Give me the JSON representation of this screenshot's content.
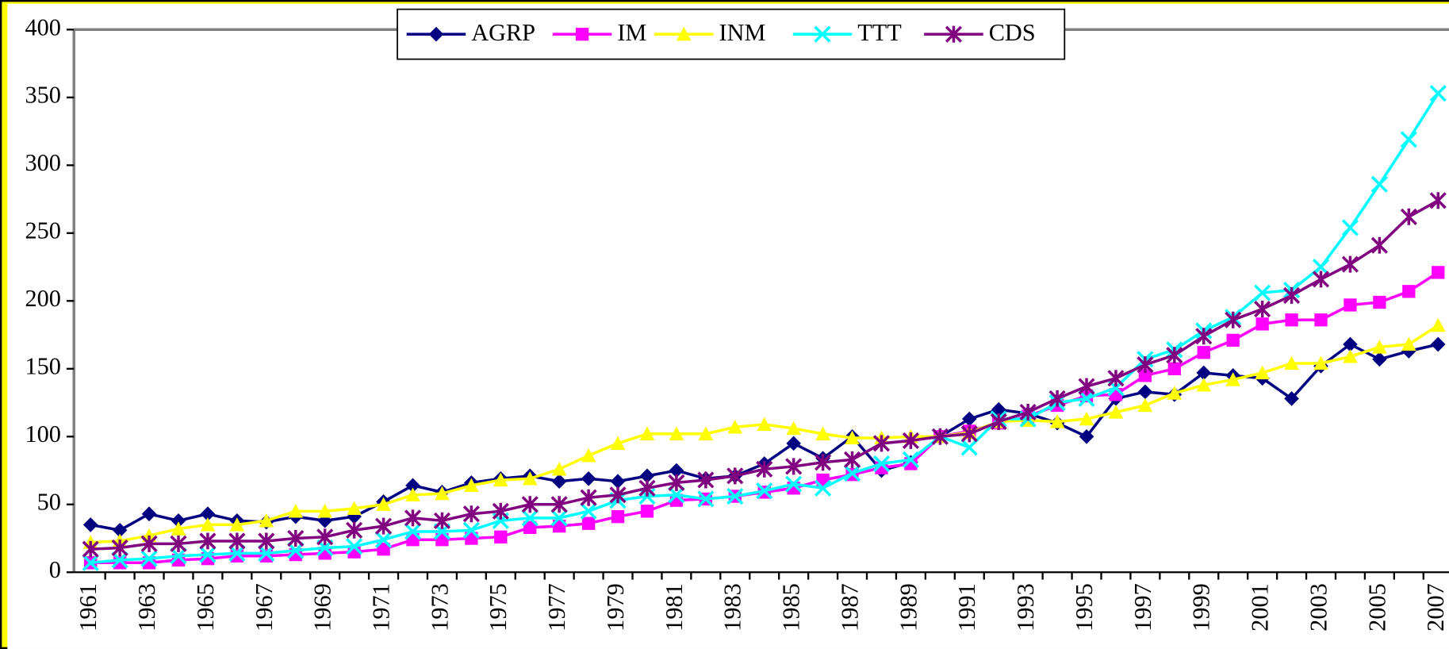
{
  "chart_data": {
    "type": "line",
    "categories": [
      "1961",
      null,
      "1963",
      null,
      "1965",
      null,
      "1967",
      null,
      "1969",
      null,
      "1971",
      null,
      "1973",
      null,
      "1975",
      null,
      "1977",
      null,
      "1979",
      null,
      "1981",
      null,
      "1983",
      null,
      "1985",
      null,
      "1987",
      null,
      "1989",
      null,
      "1991",
      null,
      "1993",
      null,
      "1995",
      null,
      "1997",
      null,
      "1999",
      null,
      "2001",
      null,
      "2003",
      null,
      "2005",
      null,
      "2007"
    ],
    "series": [
      {
        "name": "AGRP",
        "color": "#000080",
        "marker": "diamond",
        "values": [
          35,
          31,
          43,
          38,
          43,
          38,
          37,
          41,
          38,
          41,
          52,
          64,
          59,
          66,
          69,
          71,
          67,
          69,
          67,
          71,
          75,
          69,
          71,
          80,
          95,
          84,
          100,
          75,
          81,
          100,
          113,
          120,
          117,
          110,
          100,
          128,
          133,
          131,
          147,
          145,
          143,
          128,
          152,
          168,
          157,
          163,
          168
        ]
      },
      {
        "name": "IM",
        "color": "#ff00ff",
        "marker": "square",
        "values": [
          7,
          7,
          7,
          9,
          10,
          12,
          12,
          13,
          14,
          15,
          17,
          24,
          24,
          25,
          26,
          33,
          34,
          36,
          41,
          45,
          53,
          54,
          56,
          59,
          62,
          68,
          72,
          77,
          80,
          100,
          104,
          110,
          115,
          123,
          130,
          131,
          145,
          150,
          162,
          171,
          183,
          186,
          186,
          197,
          199,
          207,
          221
        ]
      },
      {
        "name": "INM",
        "color": "#ffff00",
        "marker": "triangle",
        "values": [
          22,
          23,
          27,
          32,
          35,
          35,
          38,
          45,
          45,
          47,
          50,
          57,
          58,
          64,
          68,
          69,
          76,
          86,
          95,
          102,
          102,
          102,
          107,
          109,
          106,
          102,
          99,
          99,
          100,
          100,
          103,
          111,
          112,
          111,
          113,
          118,
          123,
          132,
          138,
          142,
          147,
          154,
          154,
          159,
          166,
          168,
          182
        ]
      },
      {
        "name": "TTT",
        "color": "#00ffff",
        "marker": "x",
        "values": [
          7,
          9,
          10,
          12,
          13,
          14,
          14,
          16,
          18,
          19,
          24,
          30,
          30,
          31,
          38,
          40,
          40,
          45,
          53,
          56,
          57,
          54,
          56,
          60,
          65,
          62,
          73,
          80,
          83,
          100,
          92,
          113,
          113,
          125,
          128,
          136,
          157,
          164,
          178,
          188,
          206,
          208,
          225,
          254,
          286,
          319,
          353
        ]
      },
      {
        "name": "CDS",
        "color": "#800080",
        "marker": "star",
        "values": [
          17,
          18,
          21,
          21,
          23,
          23,
          23,
          25,
          26,
          31,
          34,
          40,
          38,
          43,
          45,
          50,
          50,
          55,
          57,
          62,
          66,
          68,
          71,
          76,
          78,
          81,
          83,
          95,
          97,
          100,
          102,
          111,
          118,
          128,
          137,
          143,
          153,
          160,
          174,
          186,
          194,
          204,
          216,
          227,
          241,
          262,
          274
        ]
      }
    ],
    "ylim": [
      0,
      400
    ],
    "yticks": [
      0,
      50,
      100,
      150,
      200,
      250,
      300,
      350,
      400
    ],
    "legend": "top"
  }
}
